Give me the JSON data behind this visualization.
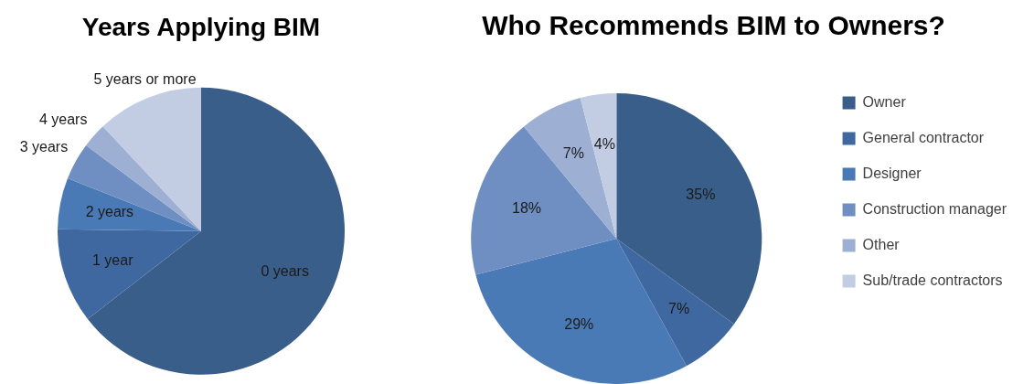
{
  "chart_data": [
    {
      "type": "pie",
      "title": "Years Applying BIM",
      "categories": [
        "0 years",
        "1 year",
        "2 years",
        "3 years",
        "4 years",
        "5 years or more"
      ],
      "values": [
        64.5,
        10.7,
        5.8,
        4.2,
        2.8,
        12
      ],
      "colors": [
        "#3a5e8a",
        "#4068a0",
        "#4a7ab5",
        "#6f8fc3",
        "#9db0d4",
        "#c2cde3"
      ],
      "legend": false
    },
    {
      "type": "pie",
      "title": "Who Recommends BIM to Owners?",
      "categories": [
        "Owner",
        "General contractor",
        "Designer",
        "Construction manager",
        "Other",
        "Sub/trade contractors"
      ],
      "values": [
        35,
        7,
        29,
        18,
        7,
        4
      ],
      "colors": [
        "#3a5e8a",
        "#4068a0",
        "#4a7ab5",
        "#6f8fc3",
        "#9db0d4",
        "#c2cde3"
      ],
      "value_labels": [
        "35%",
        "7%",
        "29%",
        "18%",
        "7%",
        "4%"
      ],
      "legend": "right"
    }
  ]
}
